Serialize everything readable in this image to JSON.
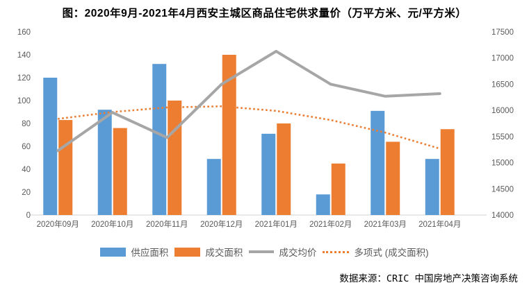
{
  "title": "图：2020年9月-2021年4月西安主城区商品住宅供求量价（万平方米、元/平方米）",
  "footer": {
    "source": "数据来源：CRIC 中国房地产决策咨询系统"
  },
  "colors": {
    "supply_bar": "#5B9BD5",
    "deal_bar": "#ED7D31",
    "price_line": "#A6A6A6",
    "poly_line": "#ED7D31",
    "axis_text": "#595959",
    "baseline": "#D9D9D9",
    "title_text": "#000000",
    "footer_text": "#000000"
  },
  "legend": [
    {
      "label": "供应面积",
      "swatch": "bar",
      "color": "#5B9BD5"
    },
    {
      "label": "成交面积",
      "swatch": "bar",
      "color": "#ED7D31"
    },
    {
      "label": "成交均价",
      "swatch": "line",
      "color": "#A6A6A6"
    },
    {
      "label": "多项式 (成交面积)",
      "swatch": "dotted",
      "color": "#ED7D31"
    }
  ],
  "chart_data": {
    "type": "bar",
    "subtype": "combo-bar-line-dual-axis",
    "title": "图：2020年9月-2021年4月西安主城区商品住宅供求量价（万平方米、元/平方米）",
    "categories": [
      "2020年09月",
      "2020年10月",
      "2020年11月",
      "2020年12月",
      "2021年01月",
      "2021年02月",
      "2021年03月",
      "2021年04月"
    ],
    "series": [
      {
        "name": "供应面积",
        "type": "bar",
        "axis": "left",
        "color": "#5B9BD5",
        "values": [
          120,
          92,
          132,
          49,
          71,
          18,
          91,
          49
        ]
      },
      {
        "name": "成交面积",
        "type": "bar",
        "axis": "left",
        "color": "#ED7D31",
        "values": [
          83,
          76,
          100,
          140,
          80,
          45,
          64,
          75
        ]
      },
      {
        "name": "成交均价",
        "type": "line",
        "axis": "right",
        "color": "#A6A6A6",
        "values": [
          15230,
          15960,
          15480,
          16500,
          17130,
          16500,
          16270,
          16320
        ]
      },
      {
        "name": "多项式 (成交面积)",
        "type": "line-dotted",
        "axis": "left",
        "color": "#ED7D31",
        "values": [
          84,
          90,
          94,
          95,
          91,
          83,
          72,
          58
        ]
      }
    ],
    "left_axis": {
      "min": 0,
      "max": 160,
      "step": 20,
      "ticks": [
        "0",
        "20",
        "40",
        "60",
        "80",
        "100",
        "120",
        "140",
        "160"
      ]
    },
    "right_axis": {
      "min": 14000,
      "max": 17500,
      "step": 500,
      "ticks": [
        "14000",
        "14500",
        "15000",
        "15500",
        "16000",
        "16500",
        "17000",
        "17500"
      ]
    },
    "grid": false,
    "legend_position": "bottom",
    "units": "万平方米 (bars, left axis), 元/平方米 (line, right axis)"
  }
}
